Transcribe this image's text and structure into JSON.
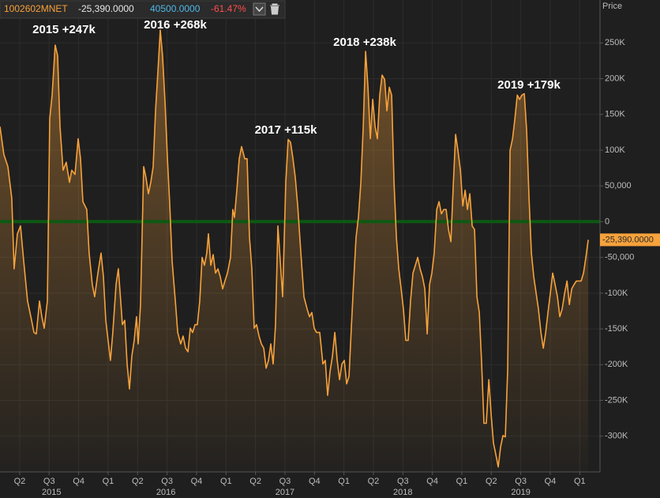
{
  "chart_data": {
    "type": "line",
    "y_axis_label": "Price",
    "x": [
      2015.083,
      2015.116,
      2015.15,
      2015.183,
      2015.203,
      2015.23,
      2015.257,
      2015.284,
      2015.317,
      2015.351,
      2015.371,
      2015.391,
      2015.418,
      2015.438,
      2015.458,
      2015.485,
      2015.505,
      2015.525,
      2015.551,
      2015.572,
      2015.592,
      2015.618,
      2015.645,
      2015.672,
      2015.692,
      2015.719,
      2015.746,
      2015.766,
      2015.786,
      2015.819,
      2015.839,
      2015.866,
      2015.886,
      2015.913,
      2015.94,
      2015.96,
      2015.98,
      2016.0,
      2016.02,
      2016.04,
      2016.067,
      2016.087,
      2016.107,
      2016.121,
      2016.141,
      2016.161,
      2016.181,
      2016.201,
      2016.221,
      2016.241,
      2016.255,
      2016.275,
      2016.302,
      2016.322,
      2016.342,
      2016.362,
      2016.382,
      2016.402,
      2016.422,
      2016.442,
      2016.462,
      2016.483,
      2016.503,
      2016.523,
      2016.543,
      2016.57,
      2016.59,
      2016.616,
      2016.636,
      2016.657,
      2016.677,
      2016.697,
      2016.717,
      2016.737,
      2016.757,
      2016.777,
      2016.797,
      2016.817,
      2016.837,
      2016.851,
      2016.871,
      2016.891,
      2016.911,
      2016.931,
      2016.951,
      2016.971,
      2016.991,
      2017.012,
      2017.038,
      2017.058,
      2017.072,
      2017.092,
      2017.112,
      2017.132,
      2017.159,
      2017.179,
      2017.199,
      2017.219,
      2017.239,
      2017.259,
      2017.28,
      2017.3,
      2017.32,
      2017.34,
      2017.36,
      2017.38,
      2017.4,
      2017.42,
      2017.44,
      2017.46,
      2017.48,
      2017.507,
      2017.527,
      2017.547,
      2017.568,
      2017.588,
      2017.608,
      2017.635,
      2017.661,
      2017.688,
      2017.708,
      2017.728,
      2017.748,
      2017.768,
      2017.795,
      2017.822,
      2017.842,
      2017.862,
      2017.882,
      2017.903,
      2017.923,
      2017.943,
      2017.963,
      2017.983,
      2018.003,
      2018.023,
      2018.043,
      2018.063,
      2018.083,
      2018.103,
      2018.123,
      2018.144,
      2018.164,
      2018.184,
      2018.204,
      2018.224,
      2018.244,
      2018.264,
      2018.284,
      2018.304,
      2018.324,
      2018.345,
      2018.365,
      2018.385,
      2018.405,
      2018.425,
      2018.445,
      2018.465,
      2018.485,
      2018.505,
      2018.525,
      2018.545,
      2018.565,
      2018.586,
      2018.606,
      2018.626,
      2018.646,
      2018.666,
      2018.686,
      2018.706,
      2018.726,
      2018.746,
      2018.766,
      2018.787,
      2018.807,
      2018.827,
      2018.847,
      2018.867,
      2018.887,
      2018.907,
      2018.927,
      2018.947,
      2018.967,
      2018.988,
      2019.008,
      2019.028,
      2019.048,
      2019.068,
      2019.088,
      2019.108,
      2019.128,
      2019.148,
      2019.168,
      2019.188,
      2019.208,
      2019.229,
      2019.249,
      2019.269,
      2019.289,
      2019.309,
      2019.329,
      2019.349,
      2019.369,
      2019.389,
      2019.409,
      2019.43,
      2019.45,
      2019.47,
      2019.49,
      2019.51,
      2019.53,
      2019.55,
      2019.57,
      2019.59,
      2019.61,
      2019.63,
      2019.65,
      2019.671,
      2019.691,
      2019.711,
      2019.731,
      2019.751,
      2019.771,
      2019.791,
      2019.811,
      2019.831,
      2019.851,
      2019.872,
      2019.892,
      2019.912,
      2019.932,
      2019.952,
      2019.972,
      2019.992,
      2020.012,
      2020.032,
      2020.052,
      2020.072
    ],
    "series": [
      {
        "name": "1002602MNET",
        "color": "#f7a23b",
        "values": [
          133000,
          94000,
          77000,
          33000,
          -66000,
          -17000,
          -6000,
          -55000,
          -111000,
          -138000,
          -155000,
          -157000,
          -111000,
          -133000,
          -149000,
          -111000,
          144000,
          177000,
          247000,
          232000,
          133000,
          72000,
          83000,
          55000,
          72000,
          66000,
          116000,
          88000,
          28000,
          17000,
          -44000,
          -88000,
          -105000,
          -72000,
          -44000,
          -77000,
          -138000,
          -166000,
          -194000,
          -155000,
          -88000,
          -66000,
          -111000,
          -144000,
          -138000,
          -199000,
          -234000,
          -188000,
          -166000,
          -133000,
          -171000,
          -116000,
          77000,
          61000,
          39000,
          55000,
          77000,
          155000,
          210000,
          268000,
          232000,
          166000,
          88000,
          22000,
          -55000,
          -111000,
          -155000,
          -171000,
          -160000,
          -177000,
          -182000,
          -149000,
          -155000,
          -144000,
          -144000,
          -111000,
          -50000,
          -61000,
          -44000,
          -17000,
          -61000,
          -46000,
          -72000,
          -66000,
          -77000,
          -94000,
          -83000,
          -72000,
          -50000,
          17000,
          6000,
          44000,
          88000,
          105000,
          88000,
          88000,
          -22000,
          -66000,
          -149000,
          -144000,
          -160000,
          -171000,
          -177000,
          -205000,
          -194000,
          -171000,
          -199000,
          -144000,
          -6000,
          -55000,
          -105000,
          55000,
          115000,
          111000,
          88000,
          61000,
          22000,
          -44000,
          -105000,
          -122000,
          -133000,
          -127000,
          -149000,
          -155000,
          -155000,
          -199000,
          -194000,
          -243000,
          -210000,
          -188000,
          -155000,
          -194000,
          -221000,
          -199000,
          -194000,
          -227000,
          -216000,
          -149000,
          -83000,
          -22000,
          6000,
          55000,
          133000,
          238000,
          188000,
          116000,
          171000,
          133000,
          116000,
          177000,
          205000,
          199000,
          155000,
          188000,
          177000,
          55000,
          -22000,
          -66000,
          -94000,
          -122000,
          -166000,
          -166000,
          -111000,
          -72000,
          -61000,
          -50000,
          -66000,
          -77000,
          -94000,
          -157000,
          -88000,
          -72000,
          -44000,
          17000,
          28000,
          11000,
          17000,
          17000,
          -11000,
          -28000,
          50000,
          122000,
          100000,
          72000,
          22000,
          44000,
          17000,
          39000,
          -6000,
          -11000,
          -105000,
          -127000,
          -199000,
          -282000,
          -282000,
          -221000,
          -271000,
          -310000,
          -326000,
          -343000,
          -315000,
          -299000,
          -301000,
          -205000,
          100000,
          116000,
          144000,
          177000,
          171000,
          177000,
          179000,
          127000,
          33000,
          -44000,
          -77000,
          -100000,
          -122000,
          -155000,
          -177000,
          -155000,
          -127000,
          -100000,
          -72000,
          -88000,
          -105000,
          -133000,
          -122000,
          -100000,
          -83000,
          -116000,
          -94000,
          -88000,
          -83000,
          -83000,
          -83000,
          -72000,
          -50000,
          -25390
        ]
      }
    ],
    "last_value": {
      "value": -25390,
      "label": "-25,390.0000"
    },
    "xlim": [
      2015.083,
      2020.172
    ],
    "ylim": [
      -350000,
      310000
    ],
    "yticks": [
      {
        "value": 250000,
        "label": "250K"
      },
      {
        "value": 200000,
        "label": "200K"
      },
      {
        "value": 150000,
        "label": "150K"
      },
      {
        "value": 100000,
        "label": "100K"
      },
      {
        "value": 50000,
        "label": "50,000"
      },
      0,
      {
        "value": -50000,
        "label": "-50,000"
      },
      {
        "value": -100000,
        "label": "-100K"
      },
      {
        "value": -150000,
        "label": "-150K"
      },
      {
        "value": -200000,
        "label": "-200K"
      },
      {
        "value": -250000,
        "label": "-250K"
      },
      {
        "value": -300000,
        "label": "-300K"
      }
    ],
    "xticks": [
      {
        "value": 2015.25,
        "label": "Q2"
      },
      {
        "value": 2015.5,
        "label": "Q3"
      },
      {
        "value": 2015.75,
        "label": "Q4"
      },
      {
        "value": 2016.0,
        "label": "Q1"
      },
      {
        "value": 2016.25,
        "label": "Q2"
      },
      {
        "value": 2016.5,
        "label": "Q3"
      },
      {
        "value": 2016.75,
        "label": "Q4"
      },
      {
        "value": 2017.0,
        "label": "Q1"
      },
      {
        "value": 2017.25,
        "label": "Q2"
      },
      {
        "value": 2017.5,
        "label": "Q3"
      },
      {
        "value": 2017.75,
        "label": "Q4"
      },
      {
        "value": 2018.0,
        "label": "Q1"
      },
      {
        "value": 2018.25,
        "label": "Q2"
      },
      {
        "value": 2018.5,
        "label": "Q3"
      },
      {
        "value": 2018.75,
        "label": "Q4"
      },
      {
        "value": 2019.0,
        "label": "Q1"
      },
      {
        "value": 2019.25,
        "label": "Q2"
      },
      {
        "value": 2019.5,
        "label": "Q3"
      },
      {
        "value": 2019.75,
        "label": "Q4"
      },
      {
        "value": 2020.0,
        "label": "Q1"
      }
    ],
    "year_ticks": [
      {
        "value": 2015.52,
        "label": "2015"
      },
      {
        "value": 2016.49,
        "label": "2016"
      },
      {
        "value": 2017.5,
        "label": "2017"
      },
      {
        "value": 2018.5,
        "label": "2018"
      },
      {
        "value": 2019.5,
        "label": "2019"
      }
    ],
    "reference_line": {
      "value": 0,
      "color": "#0c5a12"
    },
    "grid": true,
    "annotations": [
      "2015 +247k",
      "2016 +268k",
      "2017 +115k",
      "2018 +238k",
      "2019 +179k"
    ]
  },
  "header": {
    "change": "40500.0000",
    "change_percent": "-61.47%"
  }
}
